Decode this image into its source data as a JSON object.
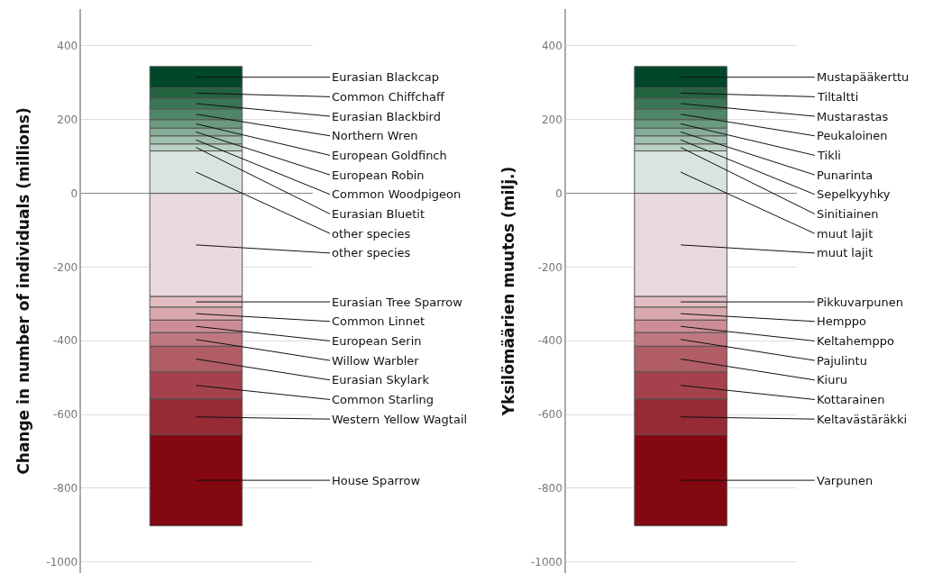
{
  "chart_data": [
    {
      "type": "bar",
      "stacked": true,
      "categories": [
        null
      ],
      "ylabel": "Change in number of individuals (millions)",
      "ylim": [
        -1030,
        500
      ],
      "yticks": [
        -1000,
        -800,
        -600,
        -400,
        -200,
        0,
        200,
        400
      ],
      "grid": "y",
      "series": [
        {
          "name": "other species",
          "color": "#d8e4dd",
          "values": [
            115
          ]
        },
        {
          "name": "Eurasian Bluetit",
          "color": "#b9d0c3",
          "values": [
            19
          ]
        },
        {
          "name": "Common Woodpigeon",
          "color": "#a0bfae",
          "values": [
            22
          ]
        },
        {
          "name": "European Robin",
          "color": "#85ad98",
          "values": [
            21
          ]
        },
        {
          "name": "European Goldfinch",
          "color": "#6a9a80",
          "values": [
            23
          ]
        },
        {
          "name": "Northern Wren",
          "color": "#4f8668",
          "values": [
            29
          ]
        },
        {
          "name": "Eurasian Blackbird",
          "color": "#3a7656",
          "values": [
            29
          ]
        },
        {
          "name": "Common Chiffchaff",
          "color": "#23633f",
          "values": [
            28
          ]
        },
        {
          "name": "Eurasian Blackcap",
          "color": "#00472a",
          "values": [
            58
          ]
        },
        {
          "name": "other species",
          "color": "#ead9dc",
          "values": [
            -280
          ]
        },
        {
          "name": "Eurasian Tree Sparrow",
          "color": "#e2bcc1",
          "values": [
            -29
          ]
        },
        {
          "name": "Common Linnet",
          "color": "#d9a8ae",
          "values": [
            -35
          ]
        },
        {
          "name": "European Serin",
          "color": "#cd8d95",
          "values": [
            -34
          ]
        },
        {
          "name": "Willow Warbler",
          "color": "#c07880",
          "values": [
            -37
          ]
        },
        {
          "name": "Eurasian Skylark",
          "color": "#b05d65",
          "values": [
            -69
          ]
        },
        {
          "name": "Common Starling",
          "color": "#a4414d",
          "values": [
            -74
          ]
        },
        {
          "name": "Western Yellow Wagtail",
          "color": "#962a35",
          "values": [
            -97
          ]
        },
        {
          "name": "House Sparrow",
          "color": "#840812",
          "values": [
            -247
          ]
        }
      ]
    },
    {
      "type": "bar",
      "stacked": true,
      "categories": [
        null
      ],
      "ylabel": "Yksilömäärien muutos (milj.)",
      "ylim": [
        -1030,
        500
      ],
      "yticks": [
        -1000,
        -800,
        -600,
        -400,
        -200,
        0,
        200,
        400
      ],
      "grid": "y",
      "series": [
        {
          "name": "muut lajit",
          "color": "#d8e4dd",
          "values": [
            115
          ]
        },
        {
          "name": "Sinitiainen",
          "color": "#b9d0c3",
          "values": [
            19
          ]
        },
        {
          "name": "Sepelkyyhky",
          "color": "#a0bfae",
          "values": [
            22
          ]
        },
        {
          "name": "Punarinta",
          "color": "#85ad98",
          "values": [
            21
          ]
        },
        {
          "name": "Tikli",
          "color": "#6a9a80",
          "values": [
            23
          ]
        },
        {
          "name": "Peukaloinen",
          "color": "#4f8668",
          "values": [
            29
          ]
        },
        {
          "name": "Mustarastas",
          "color": "#3a7656",
          "values": [
            29
          ]
        },
        {
          "name": "Tiltaltti",
          "color": "#23633f",
          "values": [
            28
          ]
        },
        {
          "name": "Mustapääkerttu",
          "color": "#00472a",
          "values": [
            58
          ]
        },
        {
          "name": "muut lajit",
          "color": "#ead9dc",
          "values": [
            -280
          ]
        },
        {
          "name": "Pikkuvarpunen",
          "color": "#e2bcc1",
          "values": [
            -29
          ]
        },
        {
          "name": "Hemppo",
          "color": "#d9a8ae",
          "values": [
            -35
          ]
        },
        {
          "name": "Keltahemppo",
          "color": "#cd8d95",
          "values": [
            -34
          ]
        },
        {
          "name": "Pajulintu",
          "color": "#c07880",
          "values": [
            -37
          ]
        },
        {
          "name": "Kiuru",
          "color": "#b05d65",
          "values": [
            -69
          ]
        },
        {
          "name": "Kottarainen",
          "color": "#a4414d",
          "values": [
            -74
          ]
        },
        {
          "name": "Keltavästäräkki",
          "color": "#962a35",
          "values": [
            -97
          ]
        },
        {
          "name": "Varpunen",
          "color": "#840812",
          "values": [
            -247
          ]
        }
      ]
    }
  ]
}
